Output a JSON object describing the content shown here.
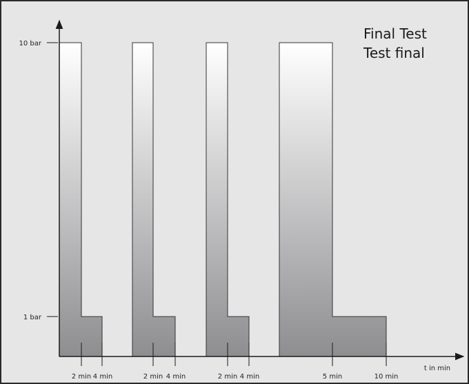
{
  "title_lines": [
    "Final Test",
    "Test final"
  ],
  "y_labels": [
    "10 bar",
    "1 bar"
  ],
  "x_labels": [
    "2 min",
    "4 min",
    "2 min",
    "4 min",
    "2 min",
    "4 min",
    "5 min",
    "10 min"
  ],
  "x_axis_label": "t in min"
}
